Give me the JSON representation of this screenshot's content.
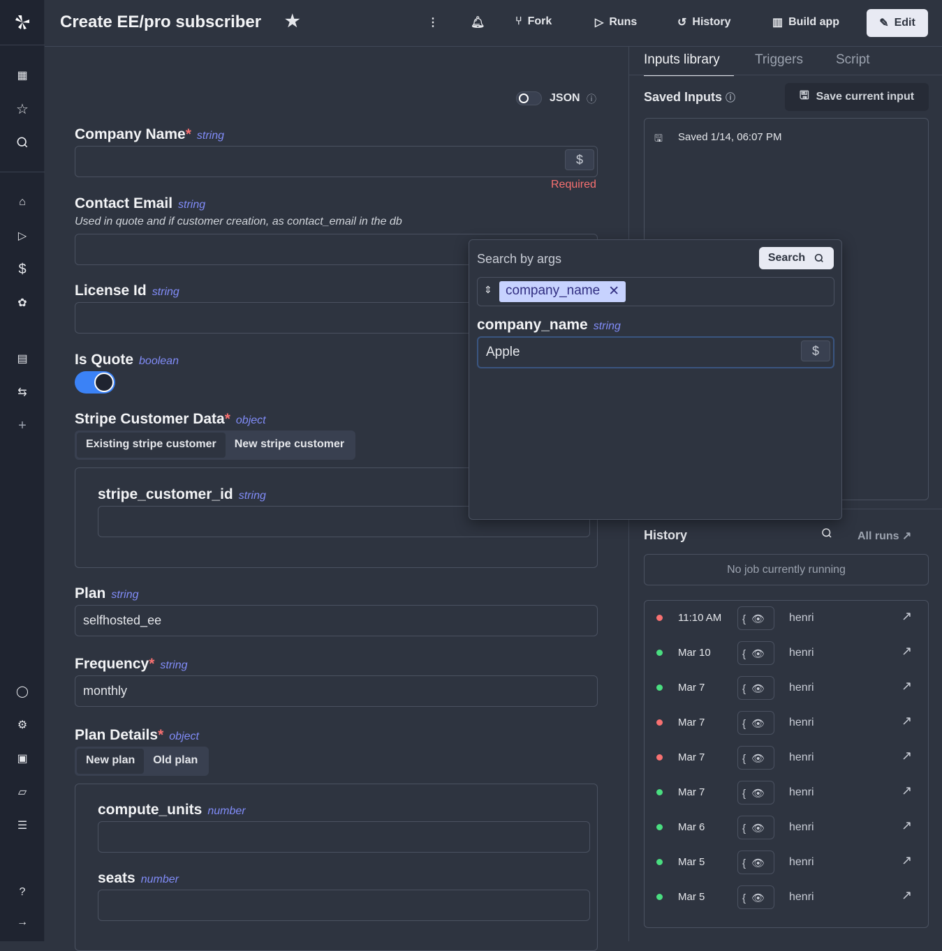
{
  "header": {
    "title": "Create EE/pro subscriber",
    "fork": "Fork",
    "runs": "Runs",
    "history": "History",
    "build_app": "Build app",
    "edit": "Edit"
  },
  "form": {
    "json_label": "JSON",
    "company_name": {
      "label": "Company Name",
      "type": "string",
      "error": "Required"
    },
    "contact_email": {
      "label": "Contact Email",
      "type": "string",
      "description": "Used in quote and if customer creation, as contact_email in the db"
    },
    "license_id": {
      "label": "License Id",
      "type": "string"
    },
    "is_quote": {
      "label": "Is Quote",
      "type": "boolean",
      "value": true
    },
    "stripe": {
      "label": "Stripe Customer Data",
      "type": "object",
      "options": [
        "Existing stripe customer",
        "New stripe customer"
      ],
      "selected": "Existing stripe customer",
      "field": "stripe_customer_id",
      "field_type": "string"
    },
    "plan": {
      "label": "Plan",
      "type": "string",
      "value": "selfhosted_ee"
    },
    "frequency": {
      "label": "Frequency",
      "type": "string",
      "value": "monthly"
    },
    "plan_details": {
      "label": "Plan Details",
      "type": "object",
      "options": [
        "New plan",
        "Old plan"
      ],
      "selected": "New plan",
      "field1": "compute_units",
      "field1_type": "number",
      "field2": "seats",
      "field2_type": "number"
    },
    "dollar": "$"
  },
  "right": {
    "tabs": [
      "Inputs library",
      "Triggers",
      "Script"
    ],
    "saved_title": "Saved Inputs",
    "save_btn": "Save current input",
    "saved_item": "Saved 1/14, 06:07 PM",
    "history_title": "History",
    "all_runs": "All runs",
    "no_job": "No job currently running",
    "runs": [
      {
        "time": "11:10 AM",
        "status": "failed",
        "user": "henri"
      },
      {
        "time": "Mar 10",
        "status": "success",
        "user": "henri"
      },
      {
        "time": "Mar 7",
        "status": "success",
        "user": "henri"
      },
      {
        "time": "Mar 7",
        "status": "failed",
        "user": "henri"
      },
      {
        "time": "Mar 7",
        "status": "failed",
        "user": "henri"
      },
      {
        "time": "Mar 7",
        "status": "success",
        "user": "henri"
      },
      {
        "time": "Mar 6",
        "status": "success",
        "user": "henri"
      },
      {
        "time": "Mar 5",
        "status": "success",
        "user": "henri"
      },
      {
        "time": "Mar 5",
        "status": "success",
        "user": "henri"
      }
    ],
    "brace": "{"
  },
  "popup": {
    "title": "Search by args",
    "search": "Search",
    "chip": "company_name",
    "field": "company_name",
    "field_type": "string",
    "value": "Apple"
  },
  "colors": {
    "success": "#4ade80",
    "failed": "#f87171",
    "accent": "#3b82f6",
    "type": "#818cf8"
  }
}
